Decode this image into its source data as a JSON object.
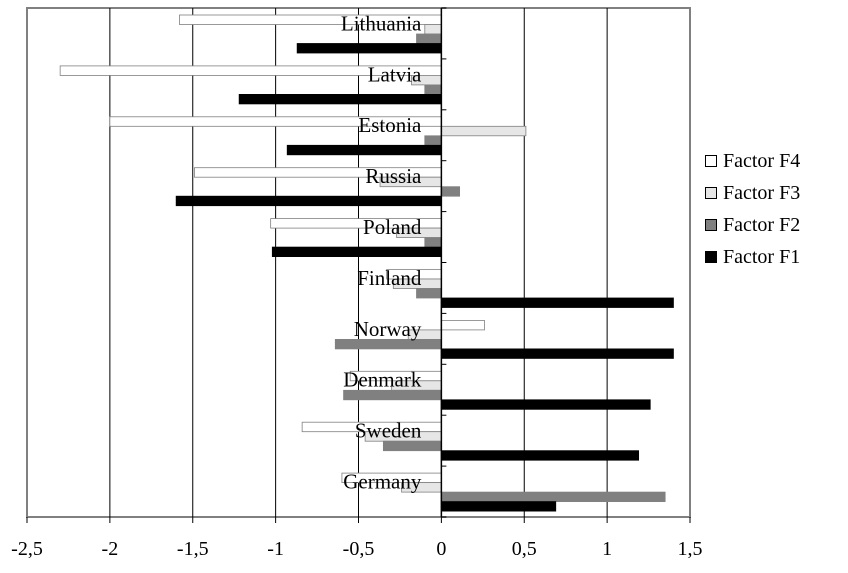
{
  "chart_data": {
    "type": "bar",
    "orientation": "horizontal",
    "categories": [
      "Lithuania",
      "Latvia",
      "Estonia",
      "Russia",
      "Poland",
      "Finland",
      "Norway",
      "Denmark",
      "Sweden",
      "Germany"
    ],
    "series": [
      {
        "name": "Factor F4",
        "color": "#ffffff",
        "values": [
          -1.58,
          -2.3,
          -2.0,
          -1.49,
          -1.03,
          -0.33,
          0.26,
          -0.55,
          -0.84,
          -0.6
        ]
      },
      {
        "name": "Factor F3",
        "color": "#e6e6e6",
        "values": [
          -0.1,
          -0.18,
          0.51,
          -0.37,
          -0.27,
          -0.29,
          -0.2,
          -0.3,
          -0.46,
          -0.24
        ]
      },
      {
        "name": "Factor F2",
        "color": "#808080",
        "values": [
          -0.15,
          -0.1,
          -0.1,
          0.11,
          -0.1,
          -0.15,
          -0.64,
          -0.59,
          -0.35,
          1.35
        ]
      },
      {
        "name": "Factor F1",
        "color": "#000000",
        "values": [
          -0.87,
          -1.22,
          -0.93,
          -1.6,
          -1.02,
          1.4,
          1.4,
          1.26,
          1.19,
          0.69
        ]
      }
    ],
    "xlim": [
      -2.5,
      1.5
    ],
    "xticks": [
      "-2,5",
      "-2",
      "-1,5",
      "-1",
      "-0,5",
      "0",
      "0,5",
      "1",
      "1,5"
    ],
    "xtick_values": [
      -2.5,
      -2,
      -1.5,
      -1,
      -0.5,
      0,
      0.5,
      1,
      1.5
    ],
    "grid": true,
    "legend_position": "right"
  },
  "legend": {
    "items": [
      "Factor F4",
      "Factor F3",
      "Factor F2",
      "Factor F1"
    ]
  }
}
